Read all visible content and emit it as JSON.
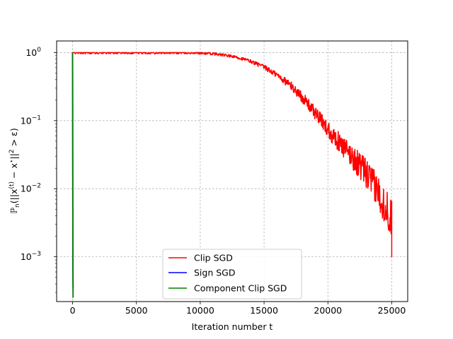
{
  "chart_data": {
    "type": "line",
    "title": "",
    "xlabel": "Iteration number t",
    "ylabel_parts": {
      "p": "ℙ",
      "p_sub": "n",
      "open": "(||x",
      "t_sup": "(t)",
      "mid": " − x",
      "star_sup": "⋆",
      "tail": "||",
      "two_sup": "2",
      "end": " > ε)"
    },
    "y_scale": "log",
    "xlim": [
      -1250,
      26250
    ],
    "ylim": [
      0.00022,
      1.48
    ],
    "x_ticks": [
      0,
      5000,
      10000,
      15000,
      20000,
      25000
    ],
    "x_tick_labels": [
      "0",
      "5000",
      "10000",
      "15000",
      "20000",
      "25000"
    ],
    "y_ticks": [
      0.001,
      0.01,
      0.1,
      1
    ],
    "y_tick_labels": [
      [
        "10",
        "−3"
      ],
      [
        "10",
        "−2"
      ],
      [
        "10",
        "−1"
      ],
      [
        "10",
        "0"
      ]
    ],
    "grid": true,
    "legend_position": "lower-center",
    "series": [
      {
        "name": "Clip SGD",
        "color": "#ff0000",
        "x": [
          0,
          8000,
          10000,
          11000,
          12000,
          13000,
          14000,
          15000,
          16000,
          17000,
          18000,
          19000,
          20000,
          21000,
          22000,
          23000,
          23500,
          24000,
          24500,
          25000
        ],
        "y": [
          1.0,
          1.0,
          0.99,
          0.96,
          0.91,
          0.84,
          0.74,
          0.61,
          0.47,
          0.34,
          0.22,
          0.13,
          0.075,
          0.045,
          0.028,
          0.017,
          0.012,
          0.0085,
          0.0055,
          0.0035
        ]
      },
      {
        "name": "Sign SGD",
        "color": "#0000ff",
        "x": [
          0,
          5,
          10,
          20,
          30,
          40
        ],
        "y": [
          1.0,
          0.5,
          0.05,
          0.003,
          0.0007,
          0.00035
        ]
      },
      {
        "name": "Component Clip SGD",
        "color": "#008000",
        "x": [
          0,
          5,
          10,
          20,
          30,
          40
        ],
        "y": [
          1.0,
          0.45,
          0.04,
          0.002,
          0.0005,
          0.00025
        ]
      }
    ]
  }
}
